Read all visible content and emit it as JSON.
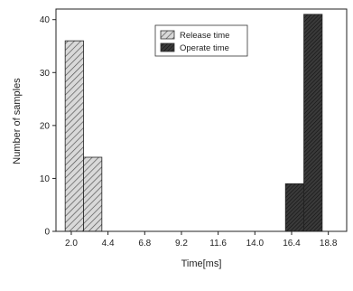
{
  "chart_data": {
    "type": "bar",
    "title": "",
    "xlabel": "Time[ms]",
    "ylabel": "Number of samples",
    "xlim": [
      1.0,
      20.0
    ],
    "ylim": [
      0,
      42
    ],
    "xticks": [
      2.0,
      4.4,
      6.8,
      9.2,
      11.6,
      14.0,
      16.4,
      18.8
    ],
    "xtick_labels": [
      "2.0",
      "4.4",
      "6.8",
      "9.2",
      "11.6",
      "14.0",
      "16.4",
      "18.8"
    ],
    "yticks": [
      0,
      10,
      20,
      30,
      40
    ],
    "ytick_labels": [
      "0",
      "10",
      "20",
      "30",
      "40"
    ],
    "grid": false,
    "legend_position": "top-center",
    "series": [
      {
        "name": "Release time",
        "pattern": "diagonal-hatch",
        "color": "#c8c8c8",
        "bins": [
          [
            1.6,
            2.8
          ],
          [
            2.8,
            4.0
          ]
        ],
        "values": [
          36,
          14
        ]
      },
      {
        "name": "Operate time",
        "pattern": "dense-diagonal-hatch",
        "color": "#333333",
        "bins": [
          [
            16.0,
            17.2
          ],
          [
            17.2,
            18.4
          ]
        ],
        "values": [
          9,
          41
        ]
      }
    ]
  }
}
